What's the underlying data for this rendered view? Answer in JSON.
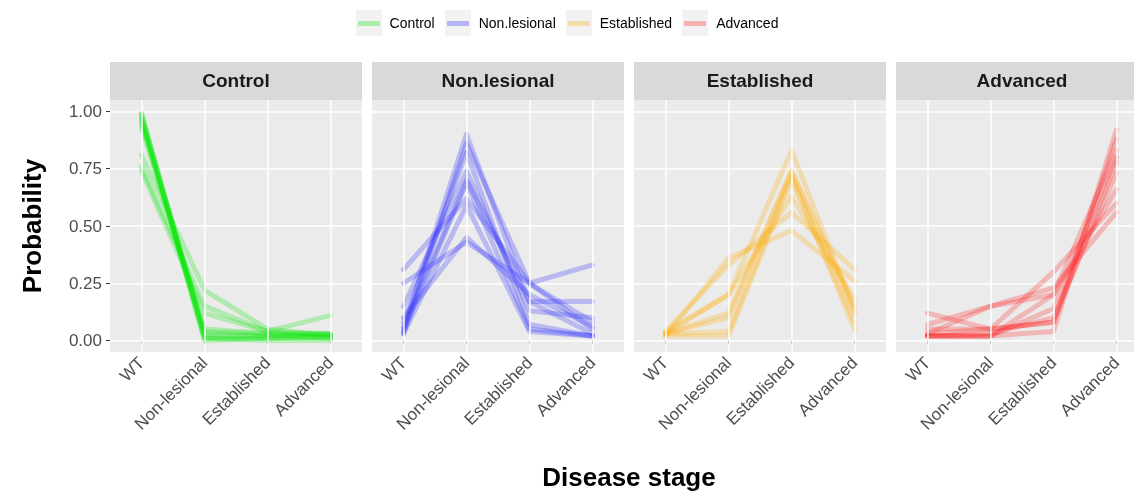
{
  "chart_data": [
    {
      "type": "line",
      "title": "Control",
      "ylabel": "Probability",
      "categories": [
        "WT",
        "Non-lesional",
        "Established",
        "Advanced"
      ],
      "ylim": [
        -0.05,
        1.05
      ],
      "yticks": [
        {
          "value": 0,
          "label": "0.00"
        },
        {
          "value": 0.25,
          "label": "0.25"
        },
        {
          "value": 0.5,
          "label": "0.50"
        },
        {
          "value": 0.75,
          "label": "0.75"
        },
        {
          "value": 1,
          "label": "1.00"
        }
      ],
      "grid": true,
      "legend": "top",
      "line_style": "solid",
      "series": [
        {
          "name": "Control",
          "color": "#00e600",
          "values": [
            0.99,
            0.01,
            0.01,
            0.01
          ]
        },
        {
          "color": "#00e600",
          "values": [
            0.98,
            0.02,
            0.02,
            0.02
          ]
        },
        {
          "color": "#00e600",
          "values": [
            0.97,
            0.0,
            0.01,
            0.02
          ]
        },
        {
          "color": "#00e600",
          "values": [
            0.96,
            0.04,
            0.03,
            0.03
          ]
        },
        {
          "color": "#00e600",
          "values": [
            0.95,
            0.05,
            0.03,
            0.01
          ]
        },
        {
          "color": "#00e600",
          "values": [
            0.93,
            0.03,
            0.02,
            0.03
          ]
        },
        {
          "color": "#00e600",
          "values": [
            0.81,
            0.22,
            0.05,
            0.02
          ]
        },
        {
          "color": "#00e600",
          "values": [
            0.76,
            0.15,
            0.04,
            0.03
          ]
        },
        {
          "color": "#00e600",
          "values": [
            0.74,
            0.12,
            0.04,
            0.11
          ]
        },
        {
          "color": "#00e600",
          "values": [
            0.99,
            0.01,
            0.0,
            0.0
          ]
        }
      ]
    },
    {
      "type": "line",
      "title": "Non.lesional",
      "xlabel": "Disease stage",
      "categories": [
        "WT",
        "Non-lesional",
        "Established",
        "Advanced"
      ],
      "ylim": [
        -0.05,
        1.05
      ],
      "yticks": [
        {
          "value": 0,
          "label": null
        },
        {
          "value": 0.25,
          "label": null
        },
        {
          "value": 0.5,
          "label": null
        },
        {
          "value": 0.75,
          "label": null
        },
        {
          "value": 1,
          "label": null
        }
      ],
      "grid": true,
      "legend": "top",
      "line_style": "solid",
      "tick_labels": "x",
      "series": [
        {
          "name": "Non.lesional",
          "color": "#2222ff",
          "values": [
            0.05,
            0.9,
            0.17,
            0.03
          ]
        },
        {
          "color": "#2222ff",
          "values": [
            0.03,
            0.86,
            0.25,
            0.05
          ]
        },
        {
          "color": "#2222ff",
          "values": [
            0.08,
            0.82,
            0.07,
            0.02
          ]
        },
        {
          "color": "#2222ff",
          "values": [
            0.15,
            0.74,
            0.13,
            0.1
          ]
        },
        {
          "color": "#2222ff",
          "values": [
            0.04,
            0.69,
            0.05,
            0.02
          ]
        },
        {
          "color": "#2222ff",
          "values": [
            0.06,
            0.7,
            0.17,
            0.17
          ]
        },
        {
          "color": "#2222ff",
          "values": [
            0.31,
            0.62,
            0.25,
            0.08
          ]
        },
        {
          "color": "#2222ff",
          "values": [
            0.25,
            0.43,
            0.25,
            0.33
          ]
        },
        {
          "color": "#2222ff",
          "values": [
            0.03,
            0.59,
            0.04,
            0.02
          ]
        },
        {
          "color": "#2222ff",
          "values": [
            0.1,
            0.45,
            0.2,
            0.06
          ]
        }
      ]
    },
    {
      "type": "line",
      "title": "Established",
      "categories": [
        "WT",
        "Non-lesional",
        "Established",
        "Advanced"
      ],
      "ylim": [
        -0.05,
        1.05
      ],
      "yticks": [
        {
          "value": 0,
          "label": null
        },
        {
          "value": 0.25,
          "label": null
        },
        {
          "value": 0.5,
          "label": null
        },
        {
          "value": 0.75,
          "label": null
        },
        {
          "value": 1,
          "label": null
        }
      ],
      "grid": true,
      "legend": "top",
      "line_style": "solid",
      "tick_labels": "x",
      "series": [
        {
          "name": "Established",
          "color": "#ffaa00",
          "values": [
            0.03,
            0.2,
            0.83,
            0.13
          ]
        },
        {
          "color": "#ffaa00",
          "values": [
            0.02,
            0.36,
            0.48,
            0.26
          ]
        },
        {
          "color": "#ffaa00",
          "values": [
            0.04,
            0.33,
            0.56,
            0.31
          ]
        },
        {
          "color": "#ffaa00",
          "values": [
            0.03,
            0.12,
            0.74,
            0.12
          ]
        },
        {
          "color": "#ffaa00",
          "values": [
            0.03,
            0.04,
            0.72,
            0.05
          ]
        },
        {
          "color": "#ffaa00",
          "values": [
            0.02,
            0.02,
            0.7,
            0.08
          ]
        },
        {
          "color": "#ffaa00",
          "values": [
            0.04,
            0.2,
            0.63,
            0.18
          ]
        },
        {
          "color": "#ffaa00",
          "values": [
            0.03,
            0.1,
            0.74,
            0.15
          ]
        }
      ]
    },
    {
      "type": "line",
      "title": "Advanced",
      "categories": [
        "WT",
        "Non-lesional",
        "Established",
        "Advanced"
      ],
      "ylim": [
        -0.05,
        1.05
      ],
      "yticks": [
        {
          "value": 0,
          "label": null
        },
        {
          "value": 0.25,
          "label": null
        },
        {
          "value": 0.5,
          "label": null
        },
        {
          "value": 0.75,
          "label": null
        },
        {
          "value": 1,
          "label": null
        }
      ],
      "grid": true,
      "legend": "top",
      "line_style": "solid",
      "tick_labels": "x",
      "series": [
        {
          "name": "Advanced",
          "color": "#ff1a1a",
          "values": [
            0.02,
            0.02,
            0.04,
            0.92
          ]
        },
        {
          "color": "#ff1a1a",
          "values": [
            0.12,
            0.05,
            0.08,
            0.88
          ]
        },
        {
          "color": "#ff1a1a",
          "values": [
            0.03,
            0.15,
            0.2,
            0.83
          ]
        },
        {
          "color": "#ff1a1a",
          "values": [
            0.02,
            0.02,
            0.14,
            0.8
          ]
        },
        {
          "color": "#ff1a1a",
          "values": [
            0.05,
            0.05,
            0.3,
            0.6
          ]
        },
        {
          "color": "#ff1a1a",
          "values": [
            0.07,
            0.15,
            0.23,
            0.56
          ]
        },
        {
          "color": "#ff1a1a",
          "values": [
            0.02,
            0.03,
            0.1,
            0.73
          ]
        },
        {
          "color": "#ff1a1a",
          "values": [
            0.03,
            0.05,
            0.08,
            0.78
          ]
        },
        {
          "color": "#ff1a1a",
          "values": [
            0.02,
            0.02,
            0.2,
            0.66
          ]
        }
      ]
    }
  ]
}
